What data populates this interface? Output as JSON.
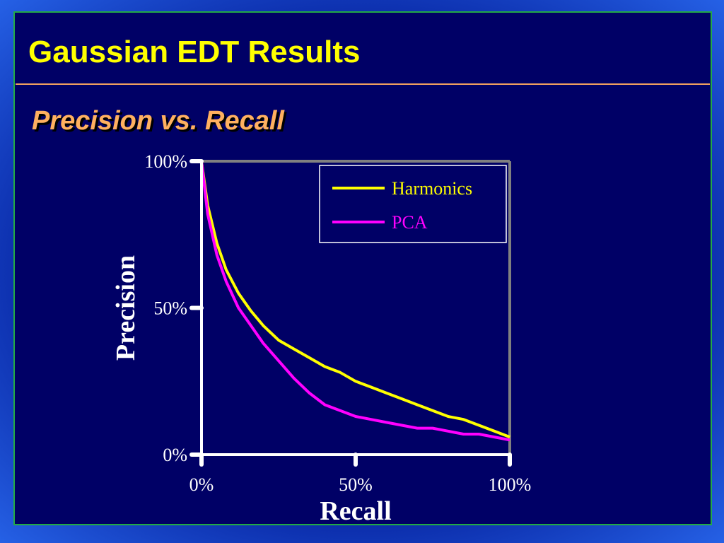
{
  "slide": {
    "title": "Gaussian EDT Results",
    "subtitle": "Precision vs. Recall"
  },
  "chart_data": {
    "type": "line",
    "x": [
      0,
      2,
      5,
      8,
      12,
      16,
      20,
      25,
      30,
      35,
      40,
      45,
      50,
      55,
      60,
      65,
      70,
      75,
      80,
      85,
      90,
      95,
      100
    ],
    "series": [
      {
        "name": "Harmonics",
        "color": "#ffff00",
        "values": [
          100,
          85,
          72,
          63,
          55,
          49,
          44,
          39,
          36,
          33,
          30,
          28,
          25,
          23,
          21,
          19,
          17,
          15,
          13,
          12,
          10,
          8,
          6
        ]
      },
      {
        "name": "PCA",
        "color": "#ff00ff",
        "values": [
          100,
          82,
          68,
          59,
          50,
          44,
          38,
          32,
          26,
          21,
          17,
          15,
          13,
          12,
          11,
          10,
          9,
          9,
          8,
          7,
          7,
          6,
          5
        ]
      }
    ],
    "xlabel": "Recall",
    "ylabel": "Precision",
    "xlim": [
      0,
      100
    ],
    "ylim": [
      0,
      100
    ],
    "xticks": [
      {
        "value": 0,
        "label": "0%"
      },
      {
        "value": 50,
        "label": "50%"
      },
      {
        "value": 100,
        "label": "100%"
      }
    ],
    "yticks": [
      {
        "value": 0,
        "label": "0%"
      },
      {
        "value": 50,
        "label": "50%"
      },
      {
        "value": 100,
        "label": "100%"
      }
    ],
    "legend": "top-right"
  }
}
